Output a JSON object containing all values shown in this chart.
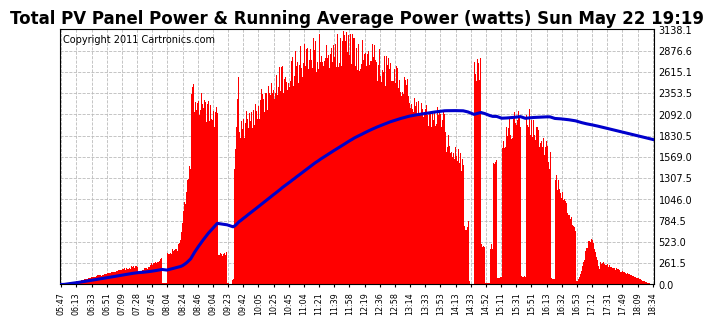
{
  "title": "Total PV Panel Power & Running Average Power (watts) Sun May 22 19:19",
  "copyright": "Copyright 2011 Cartronics.com",
  "y_ticks": [
    0.0,
    261.5,
    523.0,
    784.5,
    1046.0,
    1307.5,
    1569.0,
    1830.5,
    2092.0,
    2353.5,
    2615.1,
    2876.6,
    3138.1
  ],
  "y_max": 3138.1,
  "x_labels": [
    "05:47",
    "06:13",
    "06:33",
    "06:51",
    "07:09",
    "07:28",
    "07:45",
    "08:04",
    "08:24",
    "08:46",
    "09:04",
    "09:23",
    "09:42",
    "10:05",
    "10:25",
    "10:45",
    "11:04",
    "11:21",
    "11:39",
    "11:58",
    "12:19",
    "12:36",
    "12:58",
    "13:14",
    "13:33",
    "13:53",
    "14:13",
    "14:33",
    "14:52",
    "15:11",
    "15:31",
    "15:51",
    "16:13",
    "16:32",
    "16:53",
    "17:12",
    "17:31",
    "17:49",
    "18:09",
    "18:34"
  ],
  "bar_color": "#ff0000",
  "line_color": "#0000cc",
  "background_color": "#ffffff",
  "grid_color": "#bbbbbb",
  "title_fontsize": 12,
  "copyright_fontsize": 7
}
